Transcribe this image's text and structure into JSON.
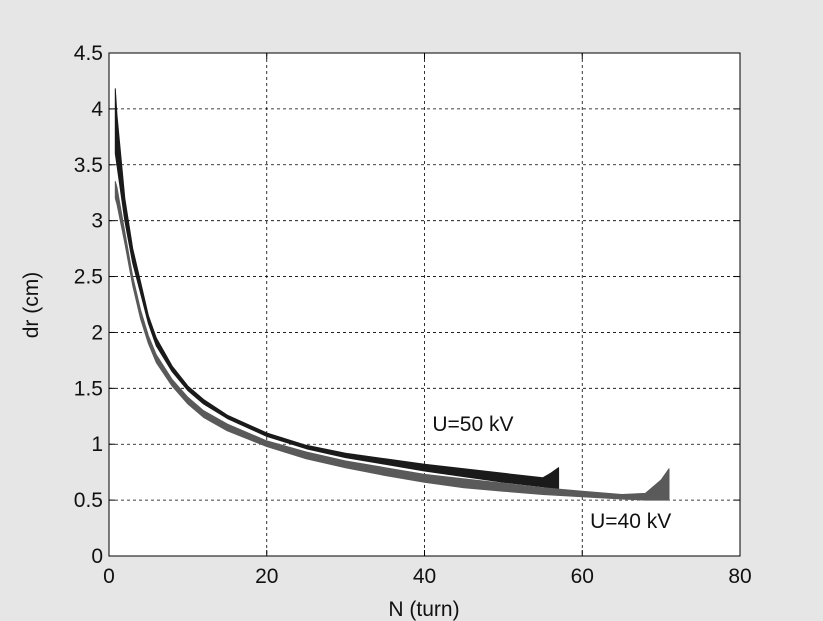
{
  "chart_data": {
    "type": "line",
    "title": "",
    "xlabel": "N (turn)",
    "ylabel": "dr (cm)",
    "xlim": [
      0,
      80
    ],
    "ylim": [
      0,
      4.5
    ],
    "xticks": [
      0,
      20,
      40,
      60,
      80
    ],
    "xtick_labels": [
      "0",
      "20",
      "40",
      "60",
      "80"
    ],
    "yticks": [
      0,
      0.5,
      1,
      1.5,
      2,
      2.5,
      3,
      3.5,
      4,
      4.5
    ],
    "ytick_labels": [
      "0",
      "0.5",
      "1",
      "1.5",
      "2",
      "2.5",
      "3",
      "3.5",
      "4",
      "4.5"
    ],
    "grid": true,
    "grid_style": "dashed",
    "series": [
      {
        "name": "U=50 kV",
        "color": "#1a1a1a",
        "upper": {
          "x": [
            0.8,
            1,
            2,
            3,
            4,
            5,
            6,
            8,
            10,
            12,
            15,
            20,
            25,
            30,
            35,
            40,
            45,
            50,
            55,
            56,
            57
          ],
          "y": [
            4.18,
            3.95,
            3.2,
            2.75,
            2.45,
            2.15,
            1.95,
            1.7,
            1.52,
            1.4,
            1.26,
            1.1,
            0.99,
            0.92,
            0.87,
            0.82,
            0.78,
            0.74,
            0.7,
            0.74,
            0.79
          ]
        },
        "lower": {
          "x": [
            0.8,
            1,
            2,
            3,
            4,
            5,
            6,
            8,
            10,
            12,
            15,
            20,
            25,
            30,
            35,
            40,
            45,
            50,
            55,
            57
          ],
          "y": [
            3.6,
            3.5,
            3.0,
            2.62,
            2.35,
            2.08,
            1.88,
            1.65,
            1.48,
            1.36,
            1.23,
            1.07,
            0.96,
            0.88,
            0.82,
            0.76,
            0.71,
            0.66,
            0.62,
            0.6
          ]
        }
      },
      {
        "name": "U=40 kV",
        "color": "#5a5a5a",
        "upper": {
          "x": [
            0.8,
            1,
            2,
            3,
            4,
            5,
            6,
            8,
            10,
            12,
            15,
            20,
            25,
            30,
            35,
            40,
            45,
            50,
            55,
            60,
            65,
            68,
            70,
            71
          ],
          "y": [
            3.35,
            3.3,
            2.9,
            2.5,
            2.2,
            1.97,
            1.8,
            1.58,
            1.42,
            1.3,
            1.18,
            1.03,
            0.93,
            0.85,
            0.79,
            0.73,
            0.69,
            0.65,
            0.61,
            0.58,
            0.55,
            0.56,
            0.68,
            0.78
          ]
        },
        "lower": {
          "x": [
            0.8,
            1,
            2,
            3,
            4,
            5,
            6,
            8,
            10,
            12,
            15,
            20,
            25,
            30,
            35,
            40,
            45,
            50,
            55,
            60,
            65,
            68,
            70,
            71
          ],
          "y": [
            3.2,
            3.15,
            2.8,
            2.42,
            2.12,
            1.9,
            1.73,
            1.52,
            1.36,
            1.24,
            1.12,
            0.98,
            0.87,
            0.79,
            0.72,
            0.66,
            0.61,
            0.58,
            0.55,
            0.53,
            0.51,
            0.5,
            0.5,
            0.5
          ]
        }
      }
    ],
    "annotations": [
      {
        "text": "U=50 kV",
        "x": 41,
        "y": 1.12
      },
      {
        "text": "U=40 kV",
        "x": 61,
        "y": 0.25
      }
    ]
  }
}
